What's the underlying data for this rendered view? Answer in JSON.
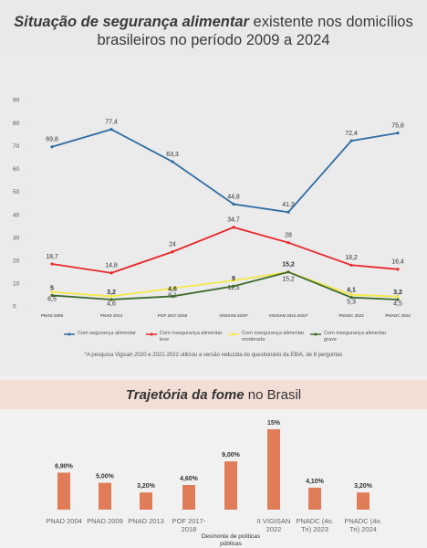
{
  "chart_data": [
    {
      "type": "line",
      "title": {
        "emphasis": "Situação de segurança alimentar",
        "rest": "existente nos domicílios brasileiros no período 2009 a 2024"
      },
      "categories": [
        "PNAD 2009",
        "PNAD 2013",
        "POF 2017-2018",
        "VIGISAN 2020*",
        "VIGISAN 2021-2022*",
        "PNADC 2023",
        "PNADC 2024"
      ],
      "series": [
        {
          "name": "Com segurança alimentar",
          "color": "#2f6da3",
          "values": [
            69.8,
            77.4,
            63.3,
            44.8,
            41.3,
            72.4,
            75.8
          ],
          "value_labels": [
            "69,8",
            "77,4",
            "63,3",
            "44,8",
            "41,3",
            "72,4",
            "75,8"
          ]
        },
        {
          "name": "Com insegurança alimentar leve",
          "color": "#e8262a",
          "values": [
            18.7,
            14.8,
            24,
            34.7,
            28,
            18.2,
            16.4
          ],
          "value_labels": [
            "18,7",
            "14,8",
            "24",
            "34,7",
            "28",
            "18,2",
            "16,4"
          ]
        },
        {
          "name": "Com insegurança alimentar moderada",
          "color": "#f3e84a",
          "values": [
            6.5,
            4.6,
            8.1,
            11.5,
            15.2,
            5.3,
            4.5
          ],
          "value_labels": [
            "6,5",
            "4,6",
            "8,1",
            "11,5",
            "15,2",
            "5,3",
            "4,5"
          ]
        },
        {
          "name": "Com insegurança alimentar grave",
          "color": "#3f6b2e",
          "values": [
            5,
            3.2,
            4.6,
            9,
            15.2,
            4.1,
            3.2
          ],
          "value_labels": [
            "5",
            "3,2",
            "4,6",
            "9",
            "15,2",
            "4,1",
            "3,2"
          ]
        }
      ],
      "ylim": [
        0,
        90
      ],
      "yticks": [
        0,
        10,
        20,
        30,
        40,
        50,
        60,
        70,
        80,
        90
      ],
      "footnote": "*A pesquisa Vigisan 2020 e 2021-2022 utilizou a versão reduzida do questionário da EBIA, de 8 perguntas"
    },
    {
      "type": "bar",
      "title": {
        "emphasis": "Trajetória da fome",
        "rest": "no Brasil"
      },
      "categories": [
        "PNAD 2004",
        "PNAD 2009",
        "PNAD 2013",
        "POF 2017-2018",
        null,
        "II VIGISAN 2022",
        "PNADC (4o. Tri) 2023",
        "PNADC (4o. Tri) 2024"
      ],
      "values": [
        6.9,
        5,
        3.2,
        4.6,
        9,
        15,
        4.1,
        3.2
      ],
      "value_labels": [
        "6,90%",
        "5,00%",
        "3,20%",
        "4,60%",
        "9,00%",
        "15%",
        "4,10%",
        "3,20%"
      ],
      "color": "#e07d58",
      "annotation": "Desmonte de políticas públicas"
    }
  ]
}
